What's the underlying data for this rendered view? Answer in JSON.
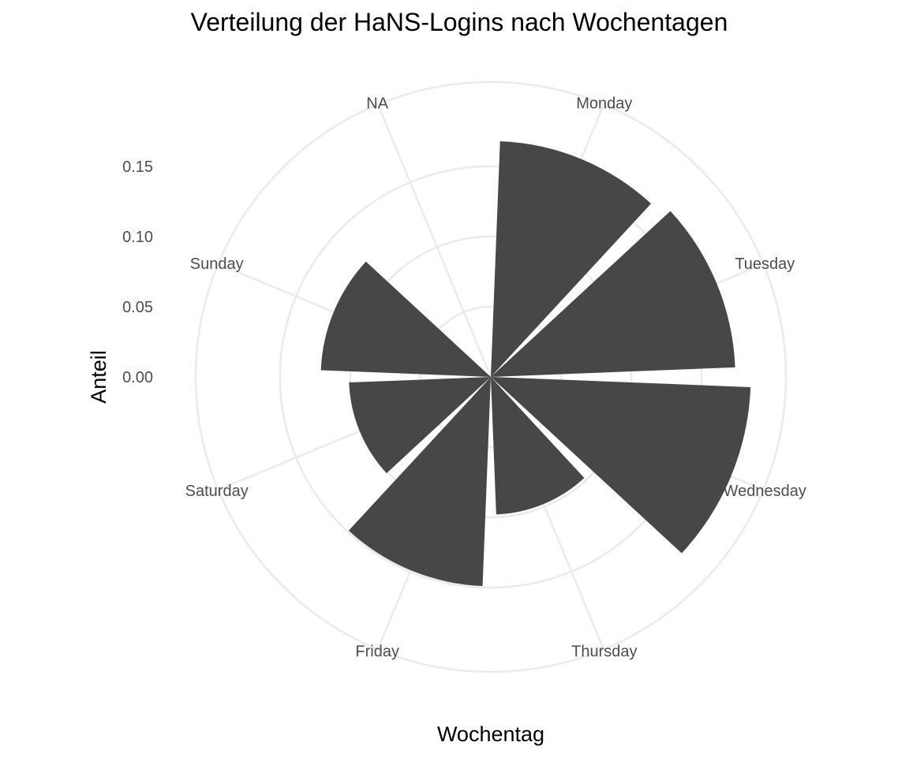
{
  "chart_data": {
    "type": "bar",
    "coord": "polar",
    "title": "Verteilung der HaNS-Logins nach Wochentagen",
    "xlabel": "Wochentag",
    "ylabel": "Anteil",
    "categories": [
      "Monday",
      "Tuesday",
      "Wednesday",
      "Thursday",
      "Friday",
      "Saturday",
      "Sunday",
      "NA"
    ],
    "values": [
      0.168,
      0.174,
      0.185,
      0.098,
      0.149,
      0.101,
      0.121,
      0.0
    ],
    "y_ticks": [
      0.0,
      0.05,
      0.1,
      0.15
    ],
    "y_tick_labels": [
      "0.00",
      "0.05",
      "0.10",
      "0.15"
    ],
    "ylim": [
      0,
      0.21
    ],
    "grid": true,
    "legend": "none",
    "colors": {
      "bar": "#474747",
      "grid": "#ebebeb",
      "tick_text": "#4d4d4d",
      "title_text": "#000000"
    }
  }
}
